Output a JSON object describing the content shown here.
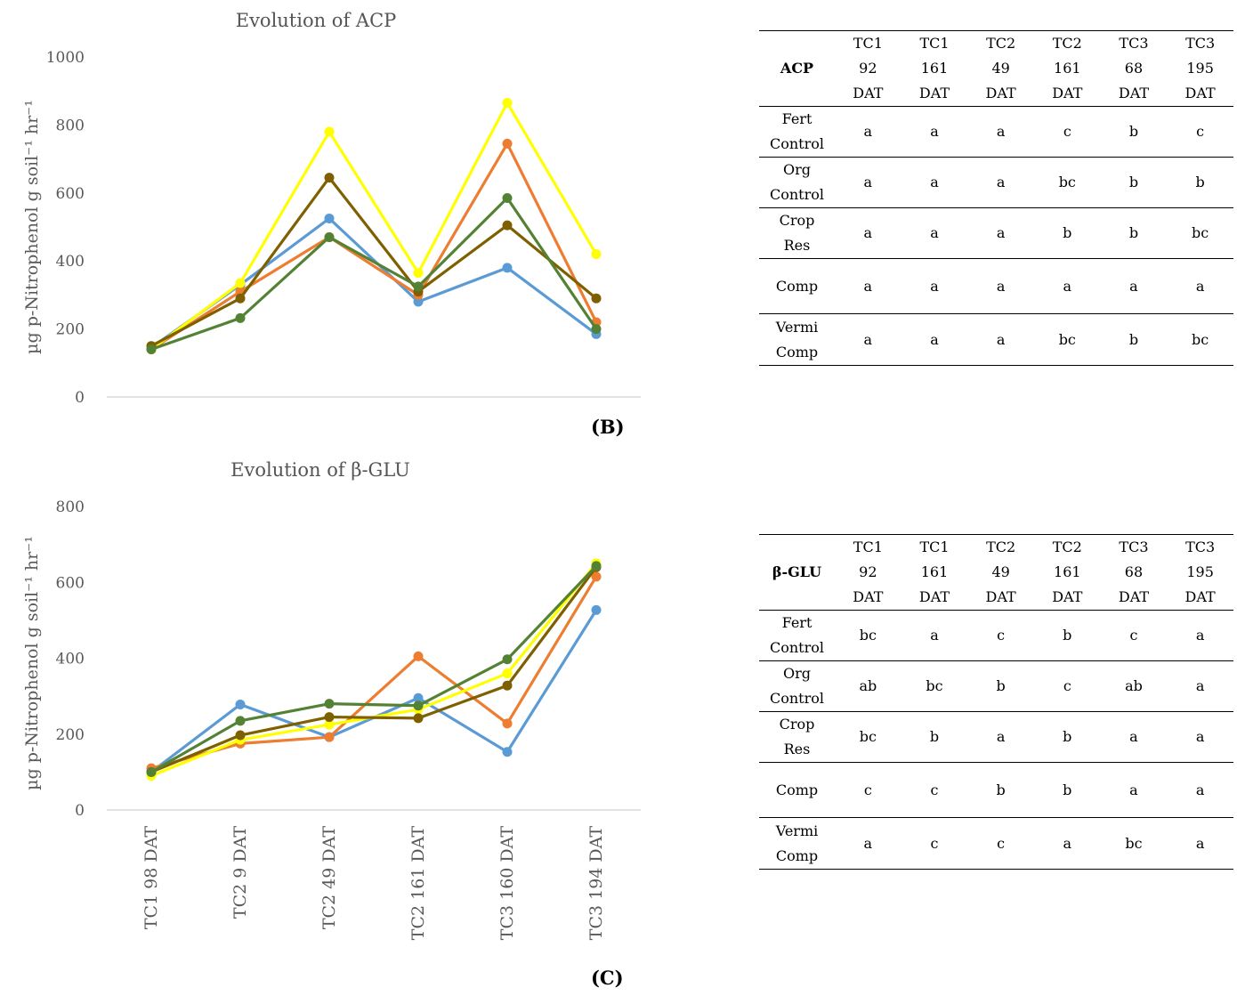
{
  "chart_data": [
    {
      "type": "line",
      "title": "Evolution of ACP",
      "ylabel": "µg p-Nitrophenol g soil⁻¹ hr⁻¹",
      "ylim": [
        0,
        1000
      ],
      "yticks": [
        0,
        200,
        400,
        600,
        800,
        1000
      ],
      "x": [
        "",
        "",
        "",
        "",
        "",
        ""
      ],
      "series": [
        {
          "color": "#5B9BD5",
          "values": [
            145,
            330,
            525,
            280,
            380,
            185
          ]
        },
        {
          "color": "#ED7D31",
          "values": [
            140,
            310,
            470,
            300,
            745,
            220
          ]
        },
        {
          "color": "#FFFF00",
          "values": [
            140,
            335,
            780,
            365,
            865,
            420
          ]
        },
        {
          "color": "#7F6000",
          "values": [
            150,
            290,
            645,
            310,
            505,
            290
          ]
        },
        {
          "color": "#548235",
          "values": [
            140,
            232,
            470,
            325,
            585,
            200
          ]
        }
      ],
      "panel_label": "(B)"
    },
    {
      "type": "line",
      "title": "Evolution of β-GLU",
      "ylabel": "µg p-Nitrophenol g soil⁻¹ hr⁻¹",
      "ylim": [
        0,
        800
      ],
      "yticks": [
        0,
        200,
        400,
        600,
        800
      ],
      "x": [
        "TC1 98 DAT",
        "TC2 9 DAT",
        "TC2 49 DAT",
        "TC2 161 DAT",
        "TC3 160 DAT",
        "TC3 194 DAT"
      ],
      "series": [
        {
          "color": "#5B9BD5",
          "values": [
            100,
            278,
            192,
            295,
            153,
            527
          ]
        },
        {
          "color": "#ED7D31",
          "values": [
            110,
            175,
            192,
            405,
            228,
            615
          ]
        },
        {
          "color": "#FFFF00",
          "values": [
            90,
            185,
            225,
            265,
            360,
            650
          ]
        },
        {
          "color": "#7F6000",
          "values": [
            100,
            197,
            245,
            242,
            328,
            640
          ]
        },
        {
          "color": "#548235",
          "values": [
            100,
            235,
            280,
            275,
            397,
            643
          ]
        }
      ],
      "panel_label": "(C)"
    }
  ],
  "tables": [
    {
      "corner": "ACP",
      "headers": [
        [
          "TC1",
          "92",
          "DAT"
        ],
        [
          "TC1",
          "161",
          "DAT"
        ],
        [
          "TC2",
          "49",
          "DAT"
        ],
        [
          "TC2",
          "161",
          "DAT"
        ],
        [
          "TC3",
          "68",
          "DAT"
        ],
        [
          "TC3",
          "195",
          "DAT"
        ]
      ],
      "rows": [
        {
          "label": [
            "Fert",
            "Control"
          ],
          "cells": [
            "a",
            "a",
            "a",
            "c",
            "b",
            "c"
          ]
        },
        {
          "label": [
            "Org",
            "Control"
          ],
          "cells": [
            "a",
            "a",
            "a",
            "bc",
            "b",
            "b"
          ]
        },
        {
          "label": [
            "Crop",
            "Res"
          ],
          "cells": [
            "a",
            "a",
            "a",
            "b",
            "b",
            "bc"
          ]
        },
        {
          "label": [
            "Comp"
          ],
          "cells": [
            "a",
            "a",
            "a",
            "a",
            "a",
            "a"
          ]
        },
        {
          "label": [
            "Vermi",
            "Comp"
          ],
          "cells": [
            "a",
            "a",
            "a",
            "bc",
            "b",
            "bc"
          ]
        }
      ]
    },
    {
      "corner": "β-GLU",
      "headers": [
        [
          "TC1",
          "92",
          "DAT"
        ],
        [
          "TC1",
          "161",
          "DAT"
        ],
        [
          "TC2",
          "49",
          "DAT"
        ],
        [
          "TC2",
          "161",
          "DAT"
        ],
        [
          "TC3",
          "68",
          "DAT"
        ],
        [
          "TC3",
          "195",
          "DAT"
        ]
      ],
      "rows": [
        {
          "label": [
            "Fert",
            "Control"
          ],
          "cells": [
            "bc",
            "a",
            "c",
            "b",
            "c",
            "a"
          ]
        },
        {
          "label": [
            "Org",
            "Control"
          ],
          "cells": [
            "ab",
            "bc",
            "b",
            "c",
            "ab",
            "a"
          ]
        },
        {
          "label": [
            "Crop",
            "Res"
          ],
          "cells": [
            "bc",
            "b",
            "a",
            "b",
            "a",
            "a"
          ]
        },
        {
          "label": [
            "Comp"
          ],
          "cells": [
            "c",
            "c",
            "b",
            "b",
            "a",
            "a"
          ]
        },
        {
          "label": [
            "Vermi",
            "Comp"
          ],
          "cells": [
            "a",
            "c",
            "c",
            "a",
            "bc",
            "a"
          ]
        }
      ]
    }
  ]
}
